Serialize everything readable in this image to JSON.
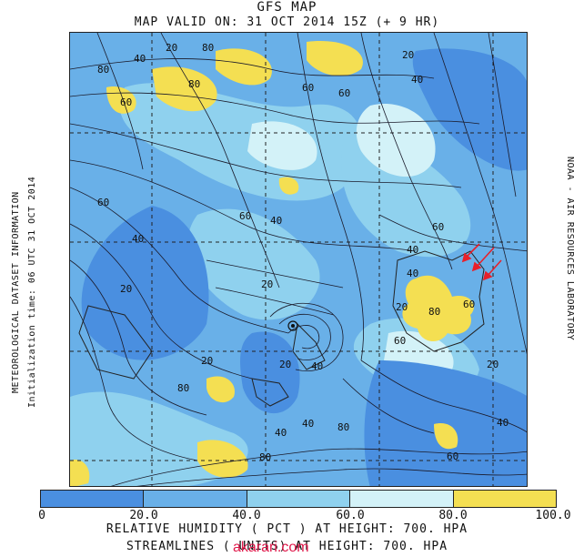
{
  "title": "GFS MAP",
  "subtitle": "MAP VALID ON: 31 OCT 2014 15Z (+  9 HR)",
  "side_left_1": "METEOROLOGICAL DATASET INFORMATION",
  "side_left_2": "Initialization time: 06 UTC 31 OCT 2014",
  "side_right": "NOAA - AIR RESOURCES LABORATORY",
  "legend": {
    "colors": [
      "#4a8fe0",
      "#69b0e8",
      "#8fd1ee",
      "#d3f2f8",
      "#f4df52"
    ],
    "ticks": [
      "0",
      "20.0",
      "40.0",
      "60.0",
      "80.0",
      "100.0"
    ]
  },
  "footer_1": "RELATIVE HUMIDITY ( PCT  ) AT HEIGHT: 700. HPA",
  "footer_2": "STREAMLINES (  UNITS)  AT HEIGHT: 700. HPA",
  "watermark": "akarari.com",
  "contour_labels": [
    "20",
    "80",
    "40",
    "80",
    "80",
    "60",
    "20",
    "60",
    "40",
    "60",
    "60",
    "40",
    "40",
    "20",
    "60",
    "20",
    "60",
    "40",
    "40",
    "60",
    "80",
    "20",
    "60",
    "20",
    "40",
    "80",
    "20",
    "40",
    "40",
    "80",
    "20",
    "40",
    "80",
    "60"
  ],
  "colors": {
    "arrow": "#e8202a",
    "stream": "#1a1a2a"
  }
}
